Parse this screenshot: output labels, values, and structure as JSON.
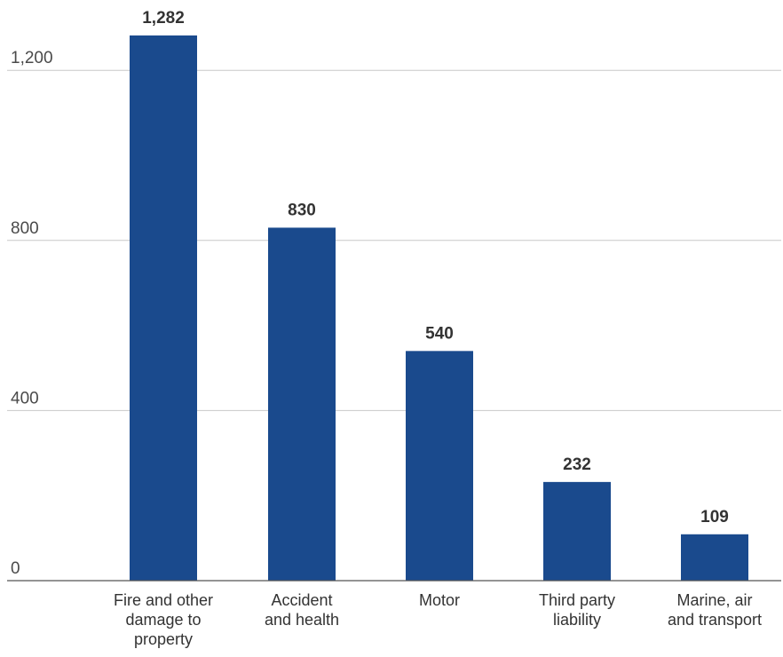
{
  "chart_data": {
    "type": "bar",
    "title": "",
    "xlabel": "",
    "ylabel": "",
    "categories": [
      [
        "Fire and other",
        "damage to",
        "property"
      ],
      [
        "Accident",
        "and health"
      ],
      [
        "Motor"
      ],
      [
        "Third party",
        "liability"
      ],
      [
        "Marine, air",
        "and transport"
      ]
    ],
    "values": [
      1282,
      830,
      540,
      232,
      109
    ],
    "data_labels": [
      "1,282",
      "830",
      "540",
      "232",
      "109"
    ],
    "ylim": [
      0,
      1400
    ],
    "yticks": [
      0,
      400,
      800,
      1200
    ],
    "ytick_labels": [
      "0",
      "400",
      "800",
      "1,200"
    ],
    "grid": true,
    "legend": "none",
    "bar_color": "#1a4a8d"
  }
}
